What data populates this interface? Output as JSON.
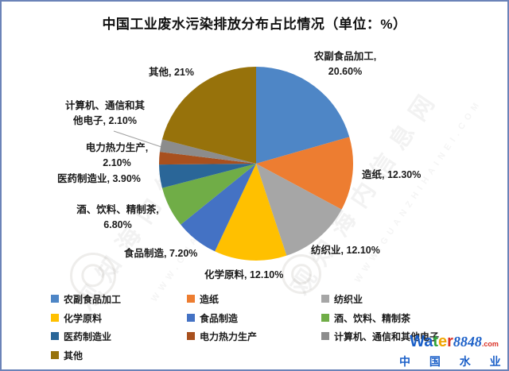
{
  "page": {
    "title": "中国工业废水污染排放分布占比情况（单位：%）"
  },
  "chart_data": {
    "type": "pie",
    "title": "中国工业废水污染排放分布占比情况",
    "unit": "%",
    "start_angle": "12-oclock",
    "direction": "clockwise",
    "legend_position": "bottom",
    "slices": [
      {
        "label": "农副食品加工",
        "value": 20.6,
        "display": "20.60%",
        "color": "#4E86C6"
      },
      {
        "label": "造纸",
        "value": 12.3,
        "display": "12.30%",
        "color": "#ED7D31"
      },
      {
        "label": "纺织业",
        "value": 12.1,
        "display": "12.10%",
        "color": "#A6A6A6"
      },
      {
        "label": "化学原料",
        "value": 12.1,
        "display": "12.10%",
        "color": "#FFC000"
      },
      {
        "label": "食品制造",
        "value": 7.2,
        "display": "7.20%",
        "color": "#4472C4"
      },
      {
        "label": "酒、饮料、精制茶",
        "value": 6.8,
        "display": "6.80%",
        "color": "#70AD47"
      },
      {
        "label": "医药制造业",
        "value": 3.9,
        "display": "3.90%",
        "color": "#2A6698"
      },
      {
        "label": "电力热力生产",
        "value": 2.1,
        "display": "2.10%",
        "color": "#A8501E"
      },
      {
        "label": "计算机、通信和其他电子",
        "value": 2.1,
        "display": "2.10%",
        "color": "#8C8C8C"
      },
      {
        "label": "其他",
        "value": 21.0,
        "display": "21%",
        "color": "#97720B"
      }
    ]
  },
  "callouts": {
    "nongfu": {
      "lines": [
        "农副食品加工,",
        "20.60%"
      ]
    },
    "zaozhi": {
      "text": "造纸, 12.30%"
    },
    "fangzhi": {
      "text": "纺织业, 12.10%"
    },
    "huaxue": {
      "text": "化学原料, 12.10%"
    },
    "shipin": {
      "text": "食品制造, 7.20%"
    },
    "jiu": {
      "lines": [
        "酒、饮料、精制茶,",
        "6.80%"
      ]
    },
    "yiyao": {
      "text": "医药制造业, 3.90%"
    },
    "dianli": {
      "lines": [
        "电力热力生产,",
        "2.10%"
      ]
    },
    "jisuanji": {
      "lines": [
        "计算机、通信和其",
        "他电子, 2.10%"
      ]
    },
    "qita": {
      "text": "其他, 21%"
    }
  },
  "watermark": {
    "cn_text": "观知海内信息网",
    "latin_text": "WWW.GUANZHIHAINEI.COM"
  },
  "footer_logo": {
    "word": [
      "W",
      "a",
      "t",
      "e",
      "r"
    ],
    "letter_colors": [
      "#1a5fc8",
      "#1a5fc8",
      "#2fa43a",
      "#f0a500",
      "#d93025"
    ],
    "number": "8848",
    "tld": ".com",
    "subtitle": "中 国 水 业 网"
  }
}
